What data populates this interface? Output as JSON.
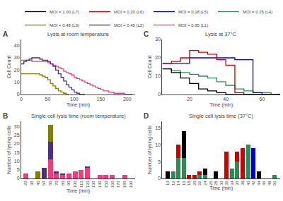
{
  "chart_data": [
    {
      "type": "line",
      "line_style": "step",
      "title": "Lysis at room temperature",
      "xlabel": "Time (min)",
      "ylabel": "Cell Count",
      "annotations": [
        {
          "text": "A"
        }
      ],
      "xlim": [
        0,
        215
      ],
      "xticks": [
        0,
        50,
        100,
        150,
        200
      ],
      "ylim": [
        0,
        45
      ],
      "yticks": [
        0,
        10,
        20,
        30,
        40
      ],
      "grid": false,
      "legend": "top",
      "series": [
        {
          "name": "MOI = 0.35 (L1)",
          "color": "#e8427a",
          "x": [
            0,
            5,
            10,
            15,
            20,
            25,
            30,
            35,
            40,
            45,
            50,
            55,
            60,
            65,
            70,
            75,
            80,
            85,
            90,
            95,
            100,
            105,
            110,
            115,
            120,
            125,
            130,
            135,
            140,
            145,
            150,
            155,
            160,
            165,
            170,
            175,
            180,
            185,
            190,
            195,
            200,
            205,
            210
          ],
          "values": [
            28,
            28,
            28,
            28,
            27,
            27,
            27,
            27,
            27,
            27,
            26,
            25,
            24,
            23,
            22,
            21,
            19,
            18,
            17,
            16,
            14,
            13,
            12,
            11,
            10,
            9,
            8,
            7,
            6,
            5,
            4,
            3,
            3,
            2,
            2,
            1,
            1,
            1,
            1,
            0,
            0,
            0,
            0
          ]
        },
        {
          "name": "MOI = 0.45 (L2)",
          "color": "#4b3080",
          "x": [
            0,
            5,
            10,
            15,
            20,
            25,
            30,
            35,
            40,
            45,
            50,
            55,
            60,
            65,
            70,
            75,
            80,
            85,
            90,
            95,
            100,
            105,
            110,
            115,
            120
          ],
          "values": [
            25,
            27,
            28,
            29,
            30,
            30,
            30,
            29,
            28,
            28,
            27,
            25,
            23,
            20,
            17,
            14,
            11,
            8,
            6,
            4,
            2,
            1,
            0,
            0,
            0
          ]
        },
        {
          "name": "MOI = 0.48 (L3)",
          "color": "#808000",
          "x": [
            0,
            5,
            10,
            15,
            20,
            25,
            30,
            35,
            40,
            45,
            50,
            55,
            60,
            65,
            70,
            75,
            80,
            85,
            90
          ],
          "values": [
            17,
            17,
            17,
            17,
            17,
            17,
            17,
            16,
            15,
            14,
            12,
            9,
            7,
            5,
            3,
            2,
            1,
            0,
            0
          ]
        }
      ]
    },
    {
      "type": "line",
      "line_style": "step",
      "title": "Lysis at 37°C",
      "xlabel": "Time (min)",
      "ylabel": "Cell Count",
      "annotations": [
        {
          "text": "C"
        }
      ],
      "xlim": [
        5,
        70
      ],
      "xticks": [
        20,
        40,
        60
      ],
      "ylim": [
        0,
        30
      ],
      "yticks": [
        0,
        10,
        20,
        30
      ],
      "grid": false,
      "legend": "top",
      "series": [
        {
          "name": "MOI = 0.15 (L4)",
          "color": "#2e8b57",
          "x": [
            5,
            10,
            15,
            20,
            25,
            30,
            35,
            40,
            45,
            50,
            55,
            60,
            65,
            70
          ],
          "values": [
            14,
            13,
            12,
            11,
            10,
            9,
            7,
            5,
            3,
            2,
            1,
            1,
            0,
            0
          ]
        },
        {
          "name": "MOI = 0.18 (L5)",
          "color": "#0000cd",
          "x": [
            5,
            10,
            15,
            20,
            25,
            30,
            35,
            40,
            45,
            50,
            55,
            60,
            65,
            70
          ],
          "values": [
            17,
            17,
            17,
            20,
            20,
            20,
            20,
            20,
            19,
            19,
            1,
            0,
            0,
            0
          ]
        },
        {
          "name": "MOI = 0.20 (L6)",
          "color": "#cc0000",
          "x": [
            5,
            10,
            15,
            20,
            25,
            30,
            35,
            40,
            45,
            50,
            55,
            60,
            65,
            70
          ],
          "values": [
            17,
            18,
            20,
            24,
            23,
            22,
            19,
            16,
            1,
            0,
            0,
            0,
            0,
            0
          ]
        },
        {
          "name": "MOI = 1.00 (L7)",
          "color": "#000000",
          "x": [
            5,
            10,
            15,
            20,
            25,
            30,
            35,
            40,
            45,
            50,
            55,
            60,
            65,
            70
          ],
          "values": [
            14,
            12,
            9,
            6,
            3,
            2,
            1,
            0,
            0,
            0,
            0,
            0,
            0,
            0
          ]
        }
      ]
    },
    {
      "type": "bar",
      "stacked": true,
      "title": "Single cell lysis time (room temperature)",
      "xlabel": "Time (min)",
      "ylabel": "Number of lysing cells",
      "annotations": [
        {
          "text": "B"
        }
      ],
      "x": [
        20,
        30,
        40,
        50,
        60,
        70,
        80,
        90,
        100,
        110,
        120,
        130,
        140,
        150,
        160,
        170,
        180,
        190
      ],
      "xlim": [
        13,
        197
      ],
      "xticks": [
        20,
        30,
        40,
        50,
        60,
        70,
        80,
        90,
        100,
        110,
        120,
        130,
        140,
        150,
        160,
        170,
        180,
        190
      ],
      "ylim": [
        0,
        33
      ],
      "yticks": [
        0,
        5,
        10,
        15,
        20,
        25,
        30
      ],
      "grid": false,
      "legend": "top",
      "series": [
        {
          "name": "MOI = 0.35 (L1)",
          "color": "#e8427a",
          "values": [
            3,
            0,
            0,
            0,
            11,
            3,
            2,
            3,
            4,
            5,
            6,
            0,
            2,
            2,
            2,
            0,
            2,
            0
          ]
        },
        {
          "name": "MOI = 0.45 (L2)",
          "color": "#4b3080",
          "values": [
            0,
            0,
            0,
            6,
            10,
            1,
            1,
            0,
            0,
            0,
            1,
            0,
            0,
            0,
            0,
            0,
            0,
            0
          ]
        },
        {
          "name": "MOI = 0.48 (L3)",
          "color": "#808000",
          "values": [
            0,
            0,
            4,
            0,
            10,
            0,
            0,
            0,
            0,
            0,
            0,
            0,
            0,
            0,
            0,
            0,
            0,
            0
          ]
        }
      ]
    },
    {
      "type": "bar",
      "stacked": true,
      "title": "Single cell lysis time (37°C)",
      "xlabel": "Time (min)",
      "ylabel": "Number of lysing cells",
      "annotations": [
        {
          "text": "D"
        }
      ],
      "x": [
        10,
        12,
        14,
        16,
        18,
        20,
        22,
        24,
        26,
        28,
        30,
        32,
        34,
        36,
        38,
        40,
        42,
        44,
        46,
        48,
        50
      ],
      "xlim": [
        8,
        52
      ],
      "xticks": [
        10,
        12,
        14,
        16,
        18,
        20,
        22,
        24,
        26,
        28,
        30,
        32,
        34,
        36,
        38,
        40,
        42,
        44,
        46,
        48,
        50
      ],
      "ylim": [
        0,
        17
      ],
      "yticks": [
        0,
        5,
        10,
        15
      ],
      "grid": false,
      "legend": "top",
      "series": [
        {
          "name": "MOI = 0.15 (L4)",
          "color": "#2e8b57",
          "values": [
            0,
            2,
            6,
            6,
            0,
            0,
            1,
            1,
            0,
            0,
            0,
            0,
            3,
            5,
            0,
            10,
            0,
            0,
            0,
            0,
            1
          ]
        },
        {
          "name": "MOI = 1.00 (L7)",
          "color": "#000000",
          "values": [
            2,
            0,
            0,
            8,
            0,
            0,
            0,
            2,
            0,
            2,
            0,
            0,
            0,
            0,
            0,
            0,
            0,
            2,
            0,
            0,
            0
          ]
        },
        {
          "name": "MOI = 0.20 (L6)",
          "color": "#cc0000",
          "values": [
            0,
            0,
            4,
            0,
            1,
            1,
            1,
            0,
            0,
            0,
            0,
            8,
            0,
            3,
            9,
            0,
            0,
            0,
            0,
            0,
            0
          ]
        },
        {
          "name": "MOI = 0.18 (L5)",
          "color": "#0000cd",
          "values": [
            0,
            0,
            0,
            0,
            0,
            0,
            0,
            0,
            0,
            0,
            0,
            0,
            0,
            0,
            0,
            0,
            9,
            0,
            0,
            0,
            0
          ]
        }
      ]
    }
  ]
}
